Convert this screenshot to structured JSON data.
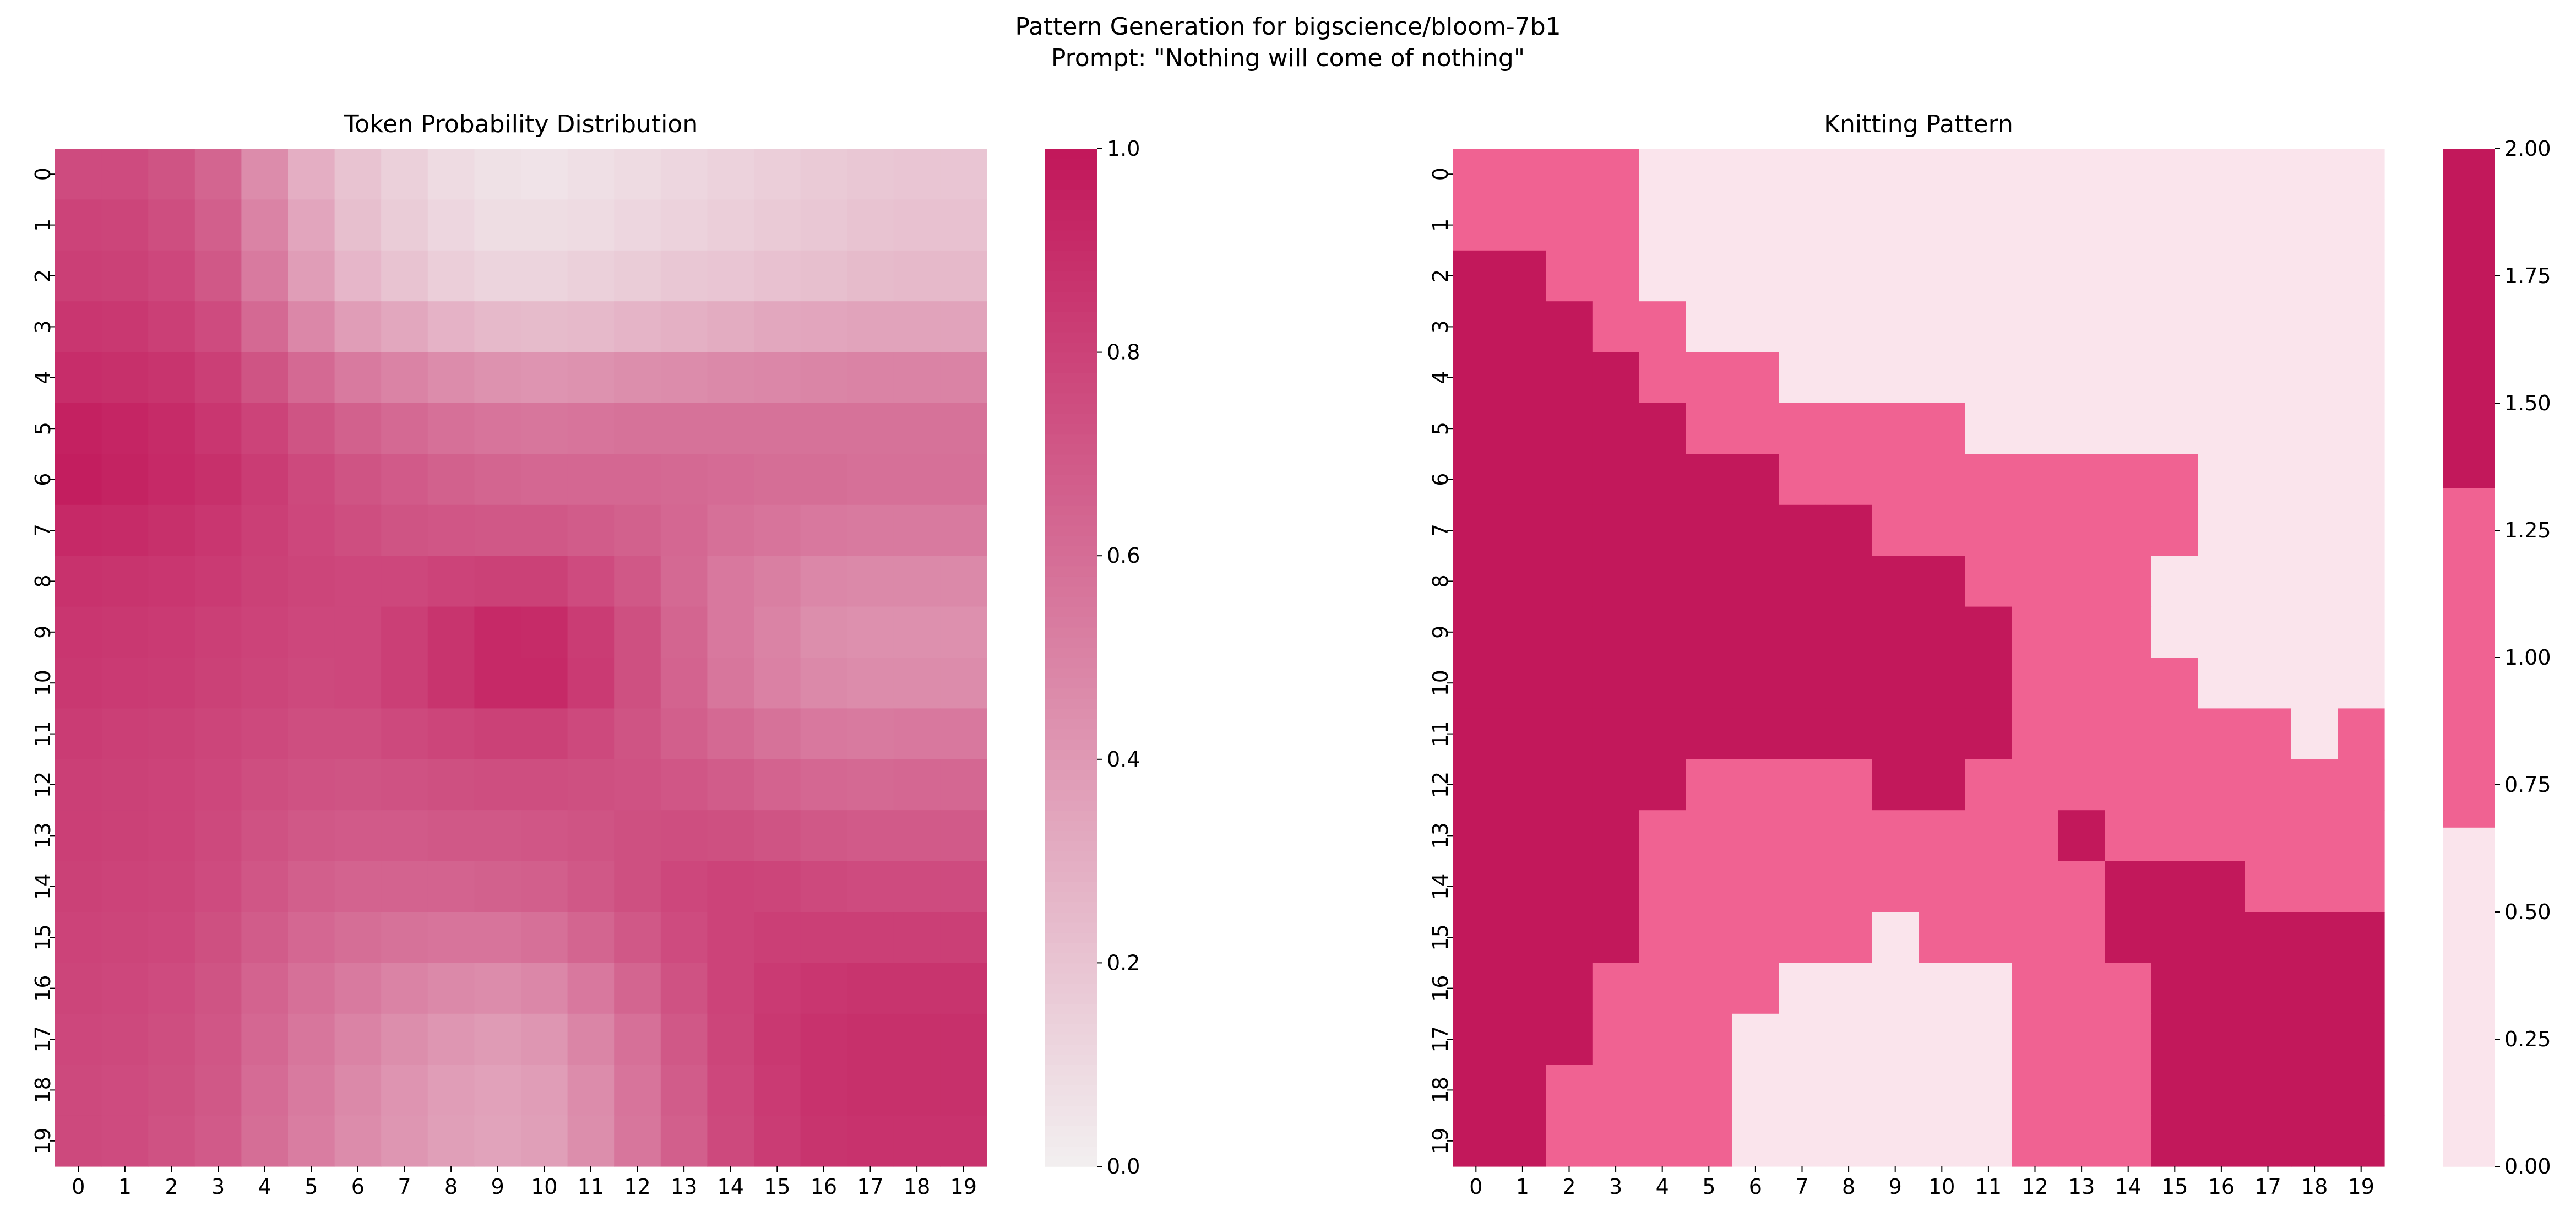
{
  "figure": {
    "title_line1": "Pattern Generation for bigscience/bloom-7b1",
    "title_line2": "Prompt: \"Nothing will come of nothing\""
  },
  "colors": {
    "low": "#f2eeef",
    "high": "#c2185b",
    "knit_levels": [
      "#fae4ec",
      "#f06292",
      "#c2185b"
    ]
  },
  "chart_data": [
    {
      "type": "heatmap",
      "title": "Token Probability Distribution",
      "xlabel": "",
      "ylabel": "",
      "x_ticks": [
        0,
        1,
        2,
        3,
        4,
        5,
        6,
        7,
        8,
        9,
        10,
        11,
        12,
        13,
        14,
        15,
        16,
        17,
        18,
        19
      ],
      "y_ticks": [
        0,
        1,
        2,
        3,
        4,
        5,
        6,
        7,
        8,
        9,
        10,
        11,
        12,
        13,
        14,
        15,
        16,
        17,
        18,
        19
      ],
      "vmin": 0,
      "vmax": 1,
      "colorbar_ticks": [
        "0.0",
        "0.2",
        "0.4",
        "0.6",
        "0.8",
        "1.0"
      ],
      "values": [
        [
          0.76,
          0.76,
          0.72,
          0.64,
          0.46,
          0.3,
          0.2,
          0.14,
          0.09,
          0.06,
          0.05,
          0.07,
          0.09,
          0.11,
          0.13,
          0.15,
          0.17,
          0.18,
          0.19,
          0.19
        ],
        [
          0.8,
          0.79,
          0.75,
          0.67,
          0.5,
          0.34,
          0.22,
          0.16,
          0.11,
          0.08,
          0.08,
          0.09,
          0.11,
          0.13,
          0.15,
          0.17,
          0.18,
          0.2,
          0.21,
          0.21
        ],
        [
          0.82,
          0.81,
          0.78,
          0.7,
          0.54,
          0.38,
          0.26,
          0.2,
          0.15,
          0.12,
          0.12,
          0.14,
          0.16,
          0.18,
          0.19,
          0.21,
          0.22,
          0.24,
          0.25,
          0.25
        ],
        [
          0.86,
          0.85,
          0.82,
          0.76,
          0.62,
          0.48,
          0.38,
          0.33,
          0.28,
          0.25,
          0.24,
          0.25,
          0.27,
          0.29,
          0.31,
          0.33,
          0.34,
          0.35,
          0.35,
          0.35
        ],
        [
          0.9,
          0.89,
          0.87,
          0.82,
          0.72,
          0.62,
          0.54,
          0.5,
          0.46,
          0.43,
          0.42,
          0.43,
          0.45,
          0.46,
          0.47,
          0.48,
          0.49,
          0.5,
          0.5,
          0.5
        ],
        [
          0.96,
          0.94,
          0.91,
          0.86,
          0.8,
          0.72,
          0.66,
          0.62,
          0.59,
          0.57,
          0.56,
          0.57,
          0.58,
          0.58,
          0.58,
          0.58,
          0.58,
          0.58,
          0.58,
          0.58
        ],
        [
          0.97,
          0.95,
          0.92,
          0.89,
          0.83,
          0.77,
          0.72,
          0.69,
          0.66,
          0.64,
          0.63,
          0.63,
          0.63,
          0.62,
          0.61,
          0.6,
          0.6,
          0.59,
          0.59,
          0.59
        ],
        [
          0.92,
          0.91,
          0.89,
          0.86,
          0.82,
          0.78,
          0.75,
          0.72,
          0.71,
          0.7,
          0.7,
          0.68,
          0.66,
          0.63,
          0.59,
          0.57,
          0.55,
          0.54,
          0.54,
          0.54
        ],
        [
          0.88,
          0.87,
          0.86,
          0.84,
          0.81,
          0.79,
          0.78,
          0.78,
          0.8,
          0.81,
          0.81,
          0.76,
          0.7,
          0.62,
          0.55,
          0.52,
          0.48,
          0.47,
          0.47,
          0.47
        ],
        [
          0.86,
          0.85,
          0.84,
          0.82,
          0.8,
          0.78,
          0.78,
          0.82,
          0.87,
          0.92,
          0.91,
          0.83,
          0.74,
          0.64,
          0.55,
          0.5,
          0.45,
          0.44,
          0.44,
          0.44
        ],
        [
          0.85,
          0.84,
          0.83,
          0.81,
          0.79,
          0.77,
          0.78,
          0.82,
          0.87,
          0.92,
          0.92,
          0.84,
          0.74,
          0.65,
          0.56,
          0.51,
          0.47,
          0.46,
          0.46,
          0.46
        ],
        [
          0.83,
          0.82,
          0.81,
          0.79,
          0.77,
          0.75,
          0.75,
          0.77,
          0.79,
          0.81,
          0.81,
          0.77,
          0.72,
          0.67,
          0.62,
          0.58,
          0.55,
          0.54,
          0.55,
          0.55
        ],
        [
          0.82,
          0.81,
          0.8,
          0.78,
          0.75,
          0.73,
          0.72,
          0.73,
          0.74,
          0.75,
          0.75,
          0.74,
          0.73,
          0.71,
          0.68,
          0.65,
          0.63,
          0.62,
          0.63,
          0.63
        ],
        [
          0.82,
          0.81,
          0.8,
          0.77,
          0.73,
          0.7,
          0.69,
          0.69,
          0.7,
          0.7,
          0.71,
          0.72,
          0.74,
          0.75,
          0.74,
          0.72,
          0.7,
          0.69,
          0.69,
          0.69
        ],
        [
          0.81,
          0.8,
          0.79,
          0.76,
          0.71,
          0.67,
          0.65,
          0.65,
          0.65,
          0.66,
          0.67,
          0.7,
          0.74,
          0.78,
          0.8,
          0.79,
          0.77,
          0.76,
          0.76,
          0.76
        ],
        [
          0.8,
          0.79,
          0.78,
          0.74,
          0.68,
          0.63,
          0.6,
          0.58,
          0.57,
          0.57,
          0.59,
          0.64,
          0.7,
          0.76,
          0.8,
          0.82,
          0.82,
          0.82,
          0.82,
          0.82
        ],
        [
          0.79,
          0.78,
          0.76,
          0.72,
          0.65,
          0.59,
          0.54,
          0.5,
          0.47,
          0.46,
          0.48,
          0.55,
          0.64,
          0.73,
          0.8,
          0.84,
          0.86,
          0.87,
          0.87,
          0.87
        ],
        [
          0.78,
          0.77,
          0.75,
          0.71,
          0.63,
          0.56,
          0.5,
          0.45,
          0.41,
          0.39,
          0.41,
          0.49,
          0.59,
          0.7,
          0.79,
          0.85,
          0.88,
          0.89,
          0.89,
          0.89
        ],
        [
          0.77,
          0.76,
          0.74,
          0.7,
          0.61,
          0.54,
          0.47,
          0.42,
          0.38,
          0.36,
          0.38,
          0.46,
          0.57,
          0.68,
          0.78,
          0.84,
          0.88,
          0.89,
          0.89,
          0.89
        ],
        [
          0.77,
          0.76,
          0.73,
          0.69,
          0.6,
          0.53,
          0.46,
          0.41,
          0.37,
          0.35,
          0.37,
          0.45,
          0.56,
          0.67,
          0.77,
          0.83,
          0.87,
          0.88,
          0.88,
          0.88
        ]
      ]
    },
    {
      "type": "heatmap",
      "title": "Knitting Pattern",
      "xlabel": "",
      "ylabel": "",
      "x_ticks": [
        0,
        1,
        2,
        3,
        4,
        5,
        6,
        7,
        8,
        9,
        10,
        11,
        12,
        13,
        14,
        15,
        16,
        17,
        18,
        19
      ],
      "y_ticks": [
        0,
        1,
        2,
        3,
        4,
        5,
        6,
        7,
        8,
        9,
        10,
        11,
        12,
        13,
        14,
        15,
        16,
        17,
        18,
        19
      ],
      "vmin": 0,
      "vmax": 2,
      "colorbar_ticks": [
        "0.00",
        "0.25",
        "0.50",
        "0.75",
        "1.00",
        "1.25",
        "1.50",
        "1.75",
        "2.00"
      ],
      "values": [
        [
          1,
          1,
          1,
          1,
          0,
          0,
          0,
          0,
          0,
          0,
          0,
          0,
          0,
          0,
          0,
          0,
          0,
          0,
          0,
          0
        ],
        [
          1,
          1,
          1,
          1,
          0,
          0,
          0,
          0,
          0,
          0,
          0,
          0,
          0,
          0,
          0,
          0,
          0,
          0,
          0,
          0
        ],
        [
          2,
          2,
          1,
          1,
          0,
          0,
          0,
          0,
          0,
          0,
          0,
          0,
          0,
          0,
          0,
          0,
          0,
          0,
          0,
          0
        ],
        [
          2,
          2,
          2,
          1,
          1,
          0,
          0,
          0,
          0,
          0,
          0,
          0,
          0,
          0,
          0,
          0,
          0,
          0,
          0,
          0
        ],
        [
          2,
          2,
          2,
          2,
          1,
          1,
          1,
          0,
          0,
          0,
          0,
          0,
          0,
          0,
          0,
          0,
          0,
          0,
          0,
          0
        ],
        [
          2,
          2,
          2,
          2,
          2,
          1,
          1,
          1,
          1,
          1,
          1,
          0,
          0,
          0,
          0,
          0,
          0,
          0,
          0,
          0
        ],
        [
          2,
          2,
          2,
          2,
          2,
          2,
          2,
          1,
          1,
          1,
          1,
          1,
          1,
          1,
          1,
          1,
          0,
          0,
          0,
          0
        ],
        [
          2,
          2,
          2,
          2,
          2,
          2,
          2,
          2,
          2,
          1,
          1,
          1,
          1,
          1,
          1,
          1,
          0,
          0,
          0,
          0
        ],
        [
          2,
          2,
          2,
          2,
          2,
          2,
          2,
          2,
          2,
          2,
          2,
          1,
          1,
          1,
          1,
          0,
          0,
          0,
          0,
          0
        ],
        [
          2,
          2,
          2,
          2,
          2,
          2,
          2,
          2,
          2,
          2,
          2,
          2,
          1,
          1,
          1,
          0,
          0,
          0,
          0,
          0
        ],
        [
          2,
          2,
          2,
          2,
          2,
          2,
          2,
          2,
          2,
          2,
          2,
          2,
          1,
          1,
          1,
          1,
          0,
          0,
          0,
          0
        ],
        [
          2,
          2,
          2,
          2,
          2,
          2,
          2,
          2,
          2,
          2,
          2,
          2,
          1,
          1,
          1,
          1,
          1,
          1,
          0,
          1
        ],
        [
          2,
          2,
          2,
          2,
          2,
          1,
          1,
          1,
          1,
          2,
          2,
          1,
          1,
          1,
          1,
          1,
          1,
          1,
          1,
          1
        ],
        [
          2,
          2,
          2,
          2,
          1,
          1,
          1,
          1,
          1,
          1,
          1,
          1,
          1,
          2,
          1,
          1,
          1,
          1,
          1,
          1
        ],
        [
          2,
          2,
          2,
          2,
          1,
          1,
          1,
          1,
          1,
          1,
          1,
          1,
          1,
          1,
          2,
          2,
          2,
          1,
          1,
          1
        ],
        [
          2,
          2,
          2,
          2,
          1,
          1,
          1,
          1,
          1,
          0,
          1,
          1,
          1,
          1,
          2,
          2,
          2,
          2,
          2,
          2
        ],
        [
          2,
          2,
          2,
          1,
          1,
          1,
          1,
          0,
          0,
          0,
          0,
          0,
          1,
          1,
          1,
          2,
          2,
          2,
          2,
          2
        ],
        [
          2,
          2,
          2,
          1,
          1,
          1,
          0,
          0,
          0,
          0,
          0,
          0,
          1,
          1,
          1,
          2,
          2,
          2,
          2,
          2
        ],
        [
          2,
          2,
          1,
          1,
          1,
          1,
          0,
          0,
          0,
          0,
          0,
          0,
          1,
          1,
          1,
          2,
          2,
          2,
          2,
          2
        ],
        [
          2,
          2,
          1,
          1,
          1,
          1,
          0,
          0,
          0,
          0,
          0,
          0,
          1,
          1,
          1,
          2,
          2,
          2,
          2,
          2
        ]
      ]
    }
  ]
}
